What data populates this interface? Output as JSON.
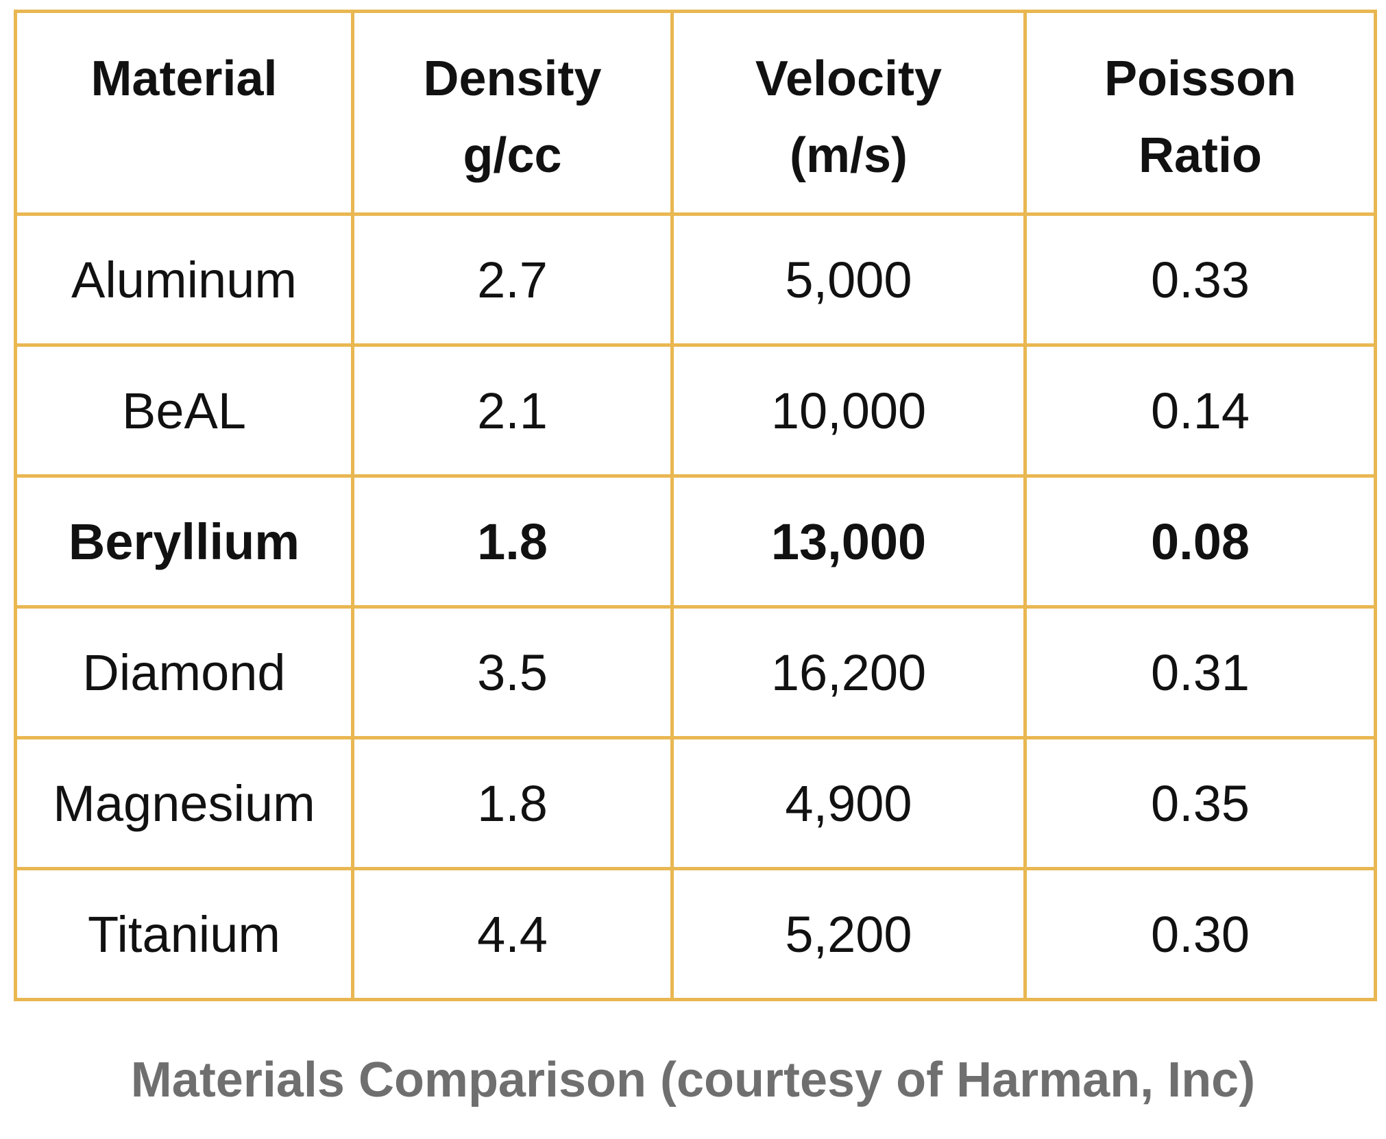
{
  "table": {
    "headers": [
      {
        "lines": [
          "Material",
          ""
        ]
      },
      {
        "lines": [
          "Density",
          "g/cc"
        ]
      },
      {
        "lines": [
          "Velocity",
          "(m/s)"
        ]
      },
      {
        "lines": [
          "Poisson",
          "Ratio"
        ]
      }
    ],
    "rows": [
      {
        "material": "Aluminum",
        "density": "2.7",
        "velocity": "5,000",
        "poisson": "0.33",
        "bold": false
      },
      {
        "material": "BeAL",
        "density": "2.1",
        "velocity": "10,000",
        "poisson": "0.14",
        "bold": false
      },
      {
        "material": "Beryllium",
        "density": "1.8",
        "velocity": "13,000",
        "poisson": "0.08",
        "bold": true
      },
      {
        "material": "Diamond",
        "density": "3.5",
        "velocity": "16,200",
        "poisson": "0.31",
        "bold": false
      },
      {
        "material": "Magnesium",
        "density": "1.8",
        "velocity": "4,900",
        "poisson": "0.35",
        "bold": false
      },
      {
        "material": "Titanium",
        "density": "4.4",
        "velocity": "5,200",
        "poisson": "0.30",
        "bold": false
      }
    ]
  },
  "caption": "Materials Comparison (courtesy of Harman, Inc)",
  "colors": {
    "border": "#E9B752",
    "caption": "#6f6f6f",
    "text": "#111111"
  }
}
